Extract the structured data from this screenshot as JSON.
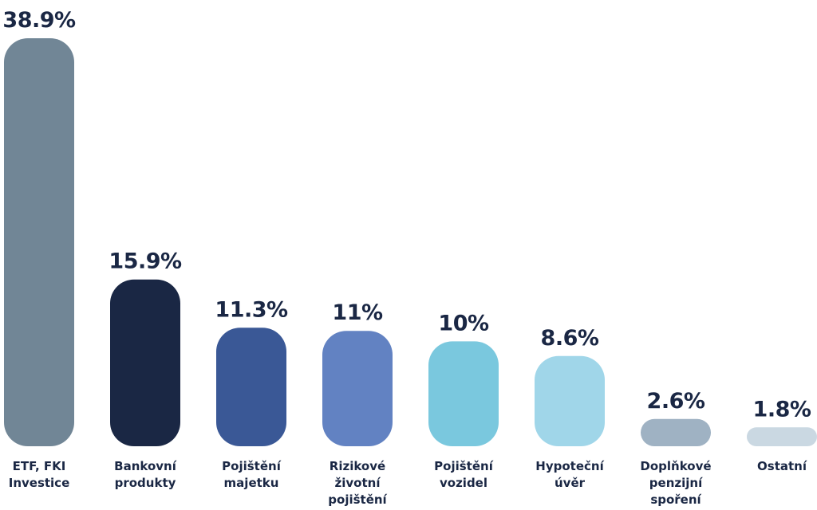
{
  "chart_data": {
    "type": "bar",
    "categories": [
      [
        "ETF, FKI",
        "Investice"
      ],
      [
        "Bankovní",
        "produkty"
      ],
      [
        "Pojištění",
        "majetku"
      ],
      [
        "Rizikové",
        "životní",
        "pojištění"
      ],
      [
        "Pojištění",
        "vozidel"
      ],
      [
        "Hypoteční",
        "úvěr"
      ],
      [
        "Doplňkové",
        "penzijní",
        "spoření"
      ],
      [
        "Ostatní"
      ]
    ],
    "values": [
      38.9,
      15.9,
      11.3,
      11,
      10,
      8.6,
      2.6,
      1.8
    ],
    "value_labels": [
      "38.9%",
      "15.9%",
      "11.3%",
      "11%",
      "10%",
      "8.6%",
      "2.6%",
      "1.8%"
    ],
    "colors": [
      "#718696",
      "#1a2744",
      "#3a5896",
      "#6282c2",
      "#7ac8de",
      "#a0d6e9",
      "#9fb2c3",
      "#cad8e2"
    ],
    "title": "",
    "xlabel": "",
    "ylabel": "",
    "ylim": [
      0,
      38.9
    ],
    "grid": false,
    "legend": "none"
  }
}
